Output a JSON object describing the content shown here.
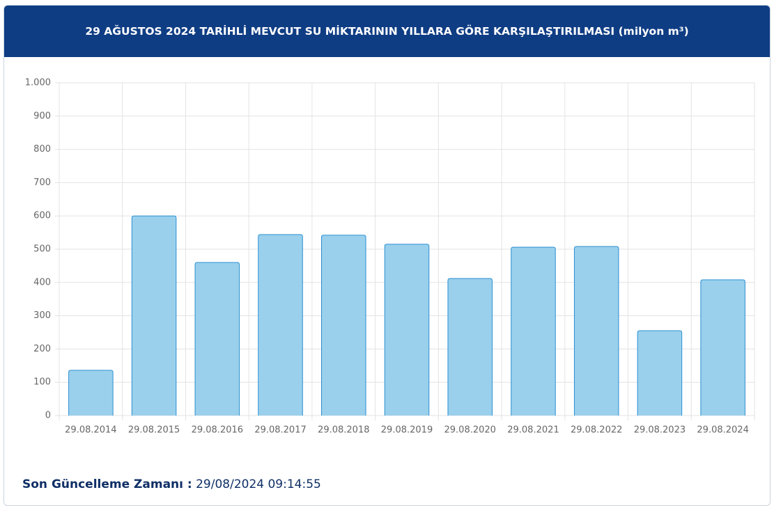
{
  "chart_data": {
    "type": "bar",
    "title": "29 AĞUSTOS 2024 TARİHLİ MEVCUT SU MİKTARININ YILLARA GÖRE KARŞILAŞTIRILMASI (milyon m³)",
    "categories": [
      "29.08.2014",
      "29.08.2015",
      "29.08.2016",
      "29.08.2017",
      "29.08.2018",
      "29.08.2019",
      "29.08.2020",
      "29.08.2021",
      "29.08.2022",
      "29.08.2023",
      "29.08.2024"
    ],
    "values": [
      136,
      600,
      460,
      544,
      542,
      515,
      412,
      506,
      508,
      255,
      408
    ],
    "color": "#9ad0ec",
    "edge_color": "#2a8fd0",
    "ylim": [
      0,
      1000
    ],
    "yticks": [
      0,
      100,
      200,
      300,
      400,
      500,
      600,
      700,
      800,
      900,
      {
        "value": 1000,
        "label": "1.000"
      }
    ],
    "grid": true
  },
  "footer": {
    "label": "Son Güncelleme Zamanı :",
    "value": "29/08/2024 09:14:55"
  }
}
